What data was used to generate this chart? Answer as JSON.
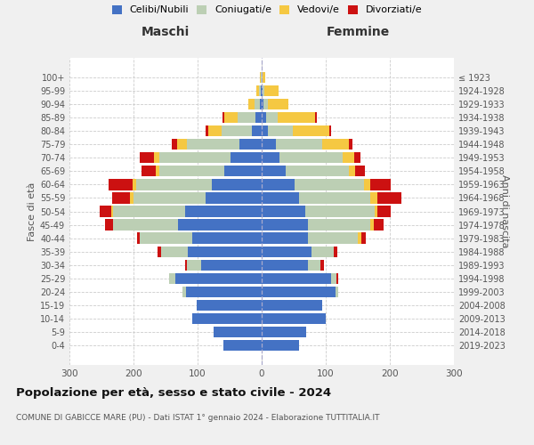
{
  "age_groups": [
    "0-4",
    "5-9",
    "10-14",
    "15-19",
    "20-24",
    "25-29",
    "30-34",
    "35-39",
    "40-44",
    "45-49",
    "50-54",
    "55-59",
    "60-64",
    "65-69",
    "70-74",
    "75-79",
    "80-84",
    "85-89",
    "90-94",
    "95-99",
    "100+"
  ],
  "birth_years": [
    "2019-2023",
    "2014-2018",
    "2009-2013",
    "2004-2008",
    "1999-2003",
    "1994-1998",
    "1989-1993",
    "1984-1988",
    "1979-1983",
    "1974-1978",
    "1969-1973",
    "1964-1968",
    "1959-1963",
    "1954-1958",
    "1949-1953",
    "1944-1948",
    "1939-1943",
    "1934-1938",
    "1929-1933",
    "1924-1928",
    "≤ 1923"
  ],
  "maschi": {
    "celibi": [
      60,
      75,
      108,
      102,
      118,
      135,
      95,
      115,
      108,
      130,
      120,
      88,
      78,
      58,
      48,
      35,
      15,
      10,
      3,
      1,
      0
    ],
    "coniugati": [
      0,
      0,
      0,
      0,
      5,
      10,
      22,
      42,
      82,
      102,
      112,
      112,
      118,
      102,
      112,
      82,
      48,
      28,
      8,
      3,
      1
    ],
    "vedovi": [
      0,
      0,
      0,
      0,
      0,
      0,
      0,
      0,
      0,
      0,
      3,
      5,
      5,
      5,
      8,
      15,
      20,
      20,
      10,
      5,
      2
    ],
    "divorziati": [
      0,
      0,
      0,
      0,
      0,
      0,
      3,
      5,
      5,
      12,
      18,
      28,
      38,
      22,
      22,
      8,
      5,
      3,
      0,
      0,
      0
    ]
  },
  "femmine": {
    "nubili": [
      58,
      70,
      100,
      95,
      115,
      108,
      72,
      78,
      72,
      72,
      68,
      58,
      52,
      38,
      28,
      22,
      10,
      7,
      3,
      1,
      0
    ],
    "coniugate": [
      0,
      0,
      0,
      0,
      5,
      8,
      20,
      35,
      78,
      98,
      108,
      112,
      108,
      98,
      98,
      72,
      38,
      18,
      7,
      3,
      1
    ],
    "vedove": [
      0,
      0,
      0,
      0,
      0,
      0,
      0,
      0,
      5,
      5,
      5,
      10,
      10,
      10,
      18,
      42,
      58,
      58,
      32,
      22,
      5
    ],
    "divorziate": [
      0,
      0,
      0,
      0,
      0,
      3,
      5,
      5,
      8,
      15,
      20,
      38,
      32,
      15,
      10,
      5,
      3,
      3,
      0,
      0,
      0
    ]
  },
  "colors": {
    "celibi_nubili": "#4472C4",
    "coniugati": "#BCCFB4",
    "vedovi": "#F5C842",
    "divorziati": "#CC1111"
  },
  "xlim": 300,
  "title": "Popolazione per età, sesso e stato civile - 2024",
  "subtitle": "COMUNE DI GABICCE MARE (PU) - Dati ISTAT 1° gennaio 2024 - Elaborazione TUTTITALIA.IT",
  "xlabel_left": "Maschi",
  "xlabel_right": "Femmine",
  "ylabel": "Fasce di età",
  "ylabel_right": "Anni di nascita",
  "bg_color": "#f0f0f0",
  "plot_bg_color": "#ffffff"
}
